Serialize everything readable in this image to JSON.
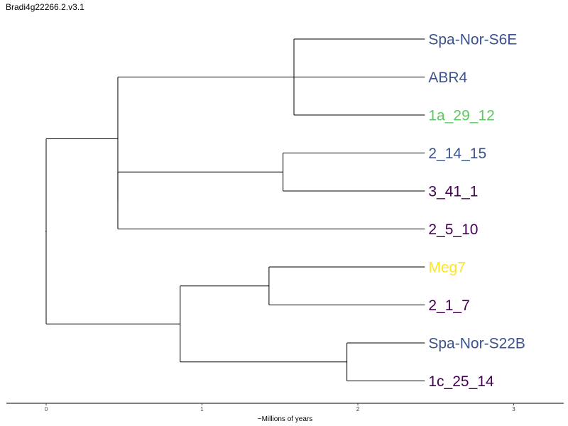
{
  "title": "Bradi4g22266.2.v3.1",
  "chart_data": {
    "type": "dendrogram",
    "title": "Bradi4g22266.2.v3.1",
    "xlabel": "~Millions of years",
    "ylabel": "",
    "x_ticks": [
      0,
      1,
      2,
      3
    ],
    "xlim": [
      -0.25,
      3.32
    ],
    "grid": false,
    "leaves": [
      {
        "label": "Spa-Nor-S6E",
        "color": "#3b528b"
      },
      {
        "label": "ABR4",
        "color": "#3b528b"
      },
      {
        "label": "1a_29_12",
        "color": "#5ec962"
      },
      {
        "label": "2_14_15",
        "color": "#3b528b"
      },
      {
        "label": "3_41_1",
        "color": "#440154"
      },
      {
        "label": "2_5_10",
        "color": "#440154"
      },
      {
        "label": "Meg7",
        "color": "#fde725"
      },
      {
        "label": "2_1_7",
        "color": "#440154"
      },
      {
        "label": "Spa-Nor-S22B",
        "color": "#3b528b"
      },
      {
        "label": "1c_25_14",
        "color": "#440154"
      }
    ],
    "leaf_x": 2.43,
    "tree": {
      "x": 0,
      "children": [
        {
          "x": 0.46,
          "children": [
            {
              "x": 1.59,
              "children": [
                {
                  "leaf": 0
                },
                {
                  "leaf": 1
                },
                {
                  "leaf": 2
                }
              ]
            },
            {
              "x": 0.46,
              "children": [
                {
                  "x": 1.52,
                  "children": [
                    {
                      "leaf": 3
                    },
                    {
                      "leaf": 4
                    }
                  ]
                },
                {
                  "leaf": 5
                }
              ]
            }
          ]
        },
        {
          "x": 0.86,
          "children": [
            {
              "x": 1.43,
              "children": [
                {
                  "leaf": 6
                },
                {
                  "leaf": 7
                }
              ]
            },
            {
              "x": 1.93,
              "children": [
                {
                  "leaf": 8
                },
                {
                  "leaf": 9
                }
              ]
            }
          ]
        }
      ]
    }
  }
}
